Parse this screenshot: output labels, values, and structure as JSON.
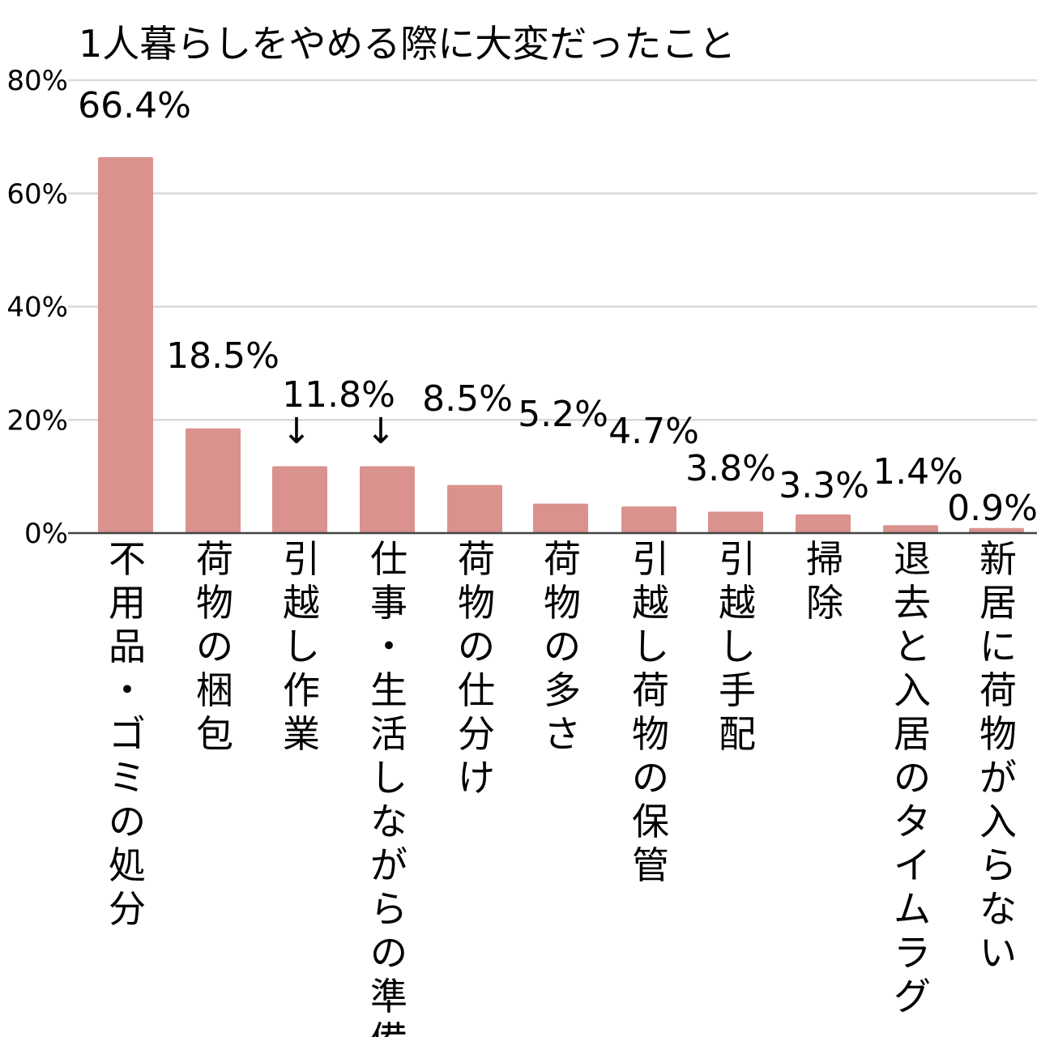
{
  "chart_data": {
    "type": "bar",
    "title": "1人暮らしをやめる際に大変だったこと",
    "xlabel": "",
    "ylabel": "",
    "ylim": [
      0,
      80
    ],
    "yticks": [
      "0%",
      "20%",
      "40%",
      "60%",
      "80%"
    ],
    "grid": true,
    "legend": "none",
    "categories": [
      "不用品・ゴミの処分",
      "荷物の梱包",
      "引越し作業",
      "仕事・生活しながらの準備",
      "荷物の仕分け",
      "荷物の多さ",
      "引越し荷物の保管",
      "引越し手配",
      "掃除",
      "退去と入居のタイムラグ",
      "新居に荷物が入らない"
    ],
    "values": [
      66.4,
      18.5,
      11.8,
      11.8,
      8.5,
      5.2,
      4.7,
      3.8,
      3.3,
      1.4,
      0.9
    ],
    "data_labels": [
      "66.4%",
      "18.5%",
      "↓",
      "11.8%",
      "8.5%",
      "5.2%",
      "4.7%",
      "3.8%",
      "3.3%",
      "1.4%",
      "0.9%"
    ],
    "bar_color": "#d9928e",
    "grid_color": "#d9d9d9",
    "axis_color": "#444444"
  }
}
